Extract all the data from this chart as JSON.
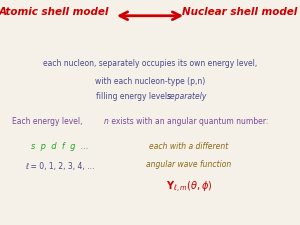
{
  "bg_color": "#f5f0e8",
  "title_left": "Atomic shell model",
  "title_right": "Nuclear shell model",
  "title_color": "#cc0000",
  "title_fontsize": 7.5,
  "arrow_color": "#cc0000",
  "body_color": "#4a4a8a",
  "body_text1": "each nucleon, separately occupies its own energy level,",
  "body_text2": "with each nucleon-type (p,n)",
  "body_text3_normal": "filling energy levels ",
  "body_text3_italic": "separately",
  "body_fontsize": 5.5,
  "energy_text": "Each energy level, ",
  "energy_n": "n",
  "energy_text2": " exists with an angular quantum number:",
  "energy_color": "#7a4a9a",
  "energy_fontsize": 5.5,
  "spdfg_text": "s  p  d  f  g  ...",
  "spdfg_color": "#22aa22",
  "spdfg_fontsize": 6,
  "ell_text": "ℓ = 0, 1, 2, 3, 4, …",
  "ell_color": "#4a4a8a",
  "ell_fontsize": 5.5,
  "wave_text1": "each with a different",
  "wave_text2": "angular wave function",
  "wave_color": "#8b6914",
  "wave_fontsize": 5.5,
  "ylm_color": "#cc0000",
  "ylm_fontsize": 7
}
